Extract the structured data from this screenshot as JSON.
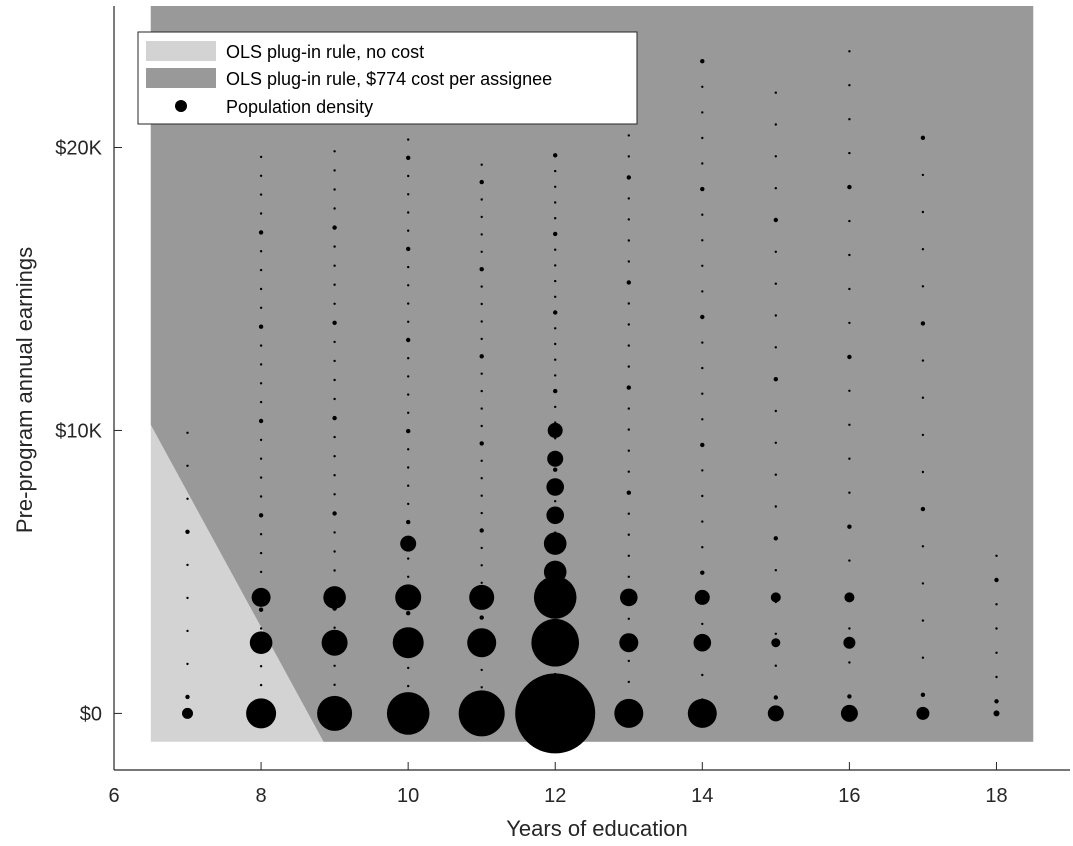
{
  "chart_data": {
    "type": "scatter",
    "title": "",
    "xlabel": "Years of education",
    "ylabel": "Pre-program annual earnings",
    "xlim": [
      6,
      19
    ],
    "ylim": [
      -2000,
      25000
    ],
    "xticks": [
      6,
      8,
      10,
      12,
      14,
      16,
      18
    ],
    "xtick_labels": [
      "6",
      "8",
      "10",
      "12",
      "14",
      "16",
      "18"
    ],
    "yticks": [
      0,
      10000,
      20000
    ],
    "ytick_labels": [
      "$0",
      "$10K",
      "$20K"
    ],
    "grid": false,
    "legend_position": "top-left",
    "legend": [
      {
        "label": "OLS plug-in rule, no cost",
        "kind": "patch",
        "color": "#d3d3d3"
      },
      {
        "label": "OLS plug-in rule, $774 cost per assignee",
        "kind": "patch",
        "color": "#999999"
      },
      {
        "label": "Population density",
        "kind": "marker",
        "color": "#000000"
      }
    ],
    "regions": [
      {
        "name": "OLS plug-in rule, no cost",
        "color": "#d3d3d3",
        "polygon": [
          [
            6.5,
            -1000
          ],
          [
            18.5,
            -1000
          ],
          [
            18.5,
            25000
          ],
          [
            6.5,
            25000
          ]
        ]
      },
      {
        "name": "OLS plug-in rule, $774 cost per assignee",
        "color": "#999999",
        "polygon": [
          [
            6.5,
            10200
          ],
          [
            6.5,
            25000
          ],
          [
            18.5,
            25000
          ],
          [
            18.5,
            -1000
          ],
          [
            8.85,
            -1000
          ]
        ]
      }
    ],
    "density_columns": [
      {
        "x": 7,
        "big": [
          [
            0,
            0.22
          ]
        ],
        "small_count": 9,
        "small_max": 10500
      },
      {
        "x": 8,
        "big": [
          [
            0,
            0.6
          ],
          [
            2500,
            0.45
          ],
          [
            4100,
            0.38
          ]
        ],
        "small_count": 30,
        "small_max": 20000
      },
      {
        "x": 9,
        "big": [
          [
            0,
            0.7
          ],
          [
            2500,
            0.52
          ],
          [
            4100,
            0.45
          ]
        ],
        "small_count": 30,
        "small_max": 20200
      },
      {
        "x": 10,
        "big": [
          [
            0,
            0.85
          ],
          [
            2500,
            0.62
          ],
          [
            4100,
            0.52
          ],
          [
            6000,
            0.32
          ]
        ],
        "small_count": 32,
        "small_max": 20600
      },
      {
        "x": 11,
        "big": [
          [
            0,
            0.92
          ],
          [
            2500,
            0.58
          ],
          [
            4100,
            0.5
          ]
        ],
        "small_count": 32,
        "small_max": 19700
      },
      {
        "x": 12,
        "big": [
          [
            0,
            1.6
          ],
          [
            2500,
            0.95
          ],
          [
            4100,
            0.85
          ],
          [
            5000,
            0.45
          ],
          [
            6000,
            0.45
          ],
          [
            7000,
            0.35
          ],
          [
            8000,
            0.35
          ],
          [
            9000,
            0.32
          ],
          [
            10000,
            0.3
          ]
        ],
        "small_count": 36,
        "small_max": 20000
      },
      {
        "x": 13,
        "big": [
          [
            0,
            0.58
          ],
          [
            2500,
            0.38
          ],
          [
            4100,
            0.35
          ]
        ],
        "small_count": 28,
        "small_max": 20800
      },
      {
        "x": 14,
        "big": [
          [
            0,
            0.58
          ],
          [
            2500,
            0.35
          ],
          [
            4100,
            0.3
          ]
        ],
        "small_count": 26,
        "small_max": 23500
      },
      {
        "x": 15,
        "big": [
          [
            0,
            0.32
          ],
          [
            2500,
            0.18
          ],
          [
            4100,
            0.2
          ]
        ],
        "small_count": 20,
        "small_max": 22500
      },
      {
        "x": 16,
        "big": [
          [
            0,
            0.34
          ],
          [
            2500,
            0.24
          ],
          [
            4100,
            0.2
          ]
        ],
        "small_count": 20,
        "small_max": 24000
      },
      {
        "x": 17,
        "big": [
          [
            0,
            0.26
          ]
        ],
        "small_count": 16,
        "small_max": 21000
      },
      {
        "x": 18,
        "big": [
          [
            0,
            0.12
          ]
        ],
        "small_count": 7,
        "small_max": 6000
      }
    ],
    "max_marker_relative": 1.6
  }
}
